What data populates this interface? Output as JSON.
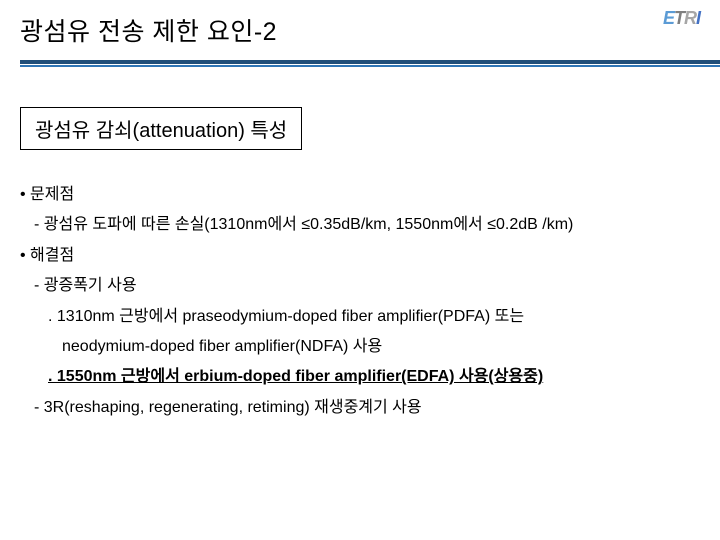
{
  "header": {
    "title": "광섬유 전송 제한 요인-2",
    "logo_text": "ETRI"
  },
  "section": {
    "box_label": "광섬유 감쇠(attenuation) 특성"
  },
  "body": {
    "l1": "• 문제점",
    "l2": "- 광섬유 도파에 따른 손실(1310nm에서 ≤0.35dB/km, 1550nm에서 ≤0.2dB /km)",
    "l3": "• 해결점",
    "l4": "- 광증폭기 사용",
    "l5": ". 1310nm 근방에서 praseodymium-doped fiber amplifier(PDFA) 또는",
    "l6": "neodymium-doped fiber amplifier(NDFA) 사용",
    "l7": ". 1550nm 근방에서 erbium-doped fiber amplifier(EDFA) 사용(상용중)",
    "l8": "- 3R(reshaping, regenerating, retiming) 재생중계기 사용"
  },
  "style": {
    "title_fontsize": 25,
    "section_fontsize": 20,
    "body_fontsize": 16,
    "rule_color": "#1f4e79",
    "subrule_color": "#2e75b6",
    "bg_color": "#ffffff",
    "text_color": "#000000",
    "logo_color_e": "#5b9bd5",
    "logo_color_t": "#7f7f7f",
    "logo_color_r": "#a6a6a6",
    "logo_color_i": "#4472c4"
  }
}
